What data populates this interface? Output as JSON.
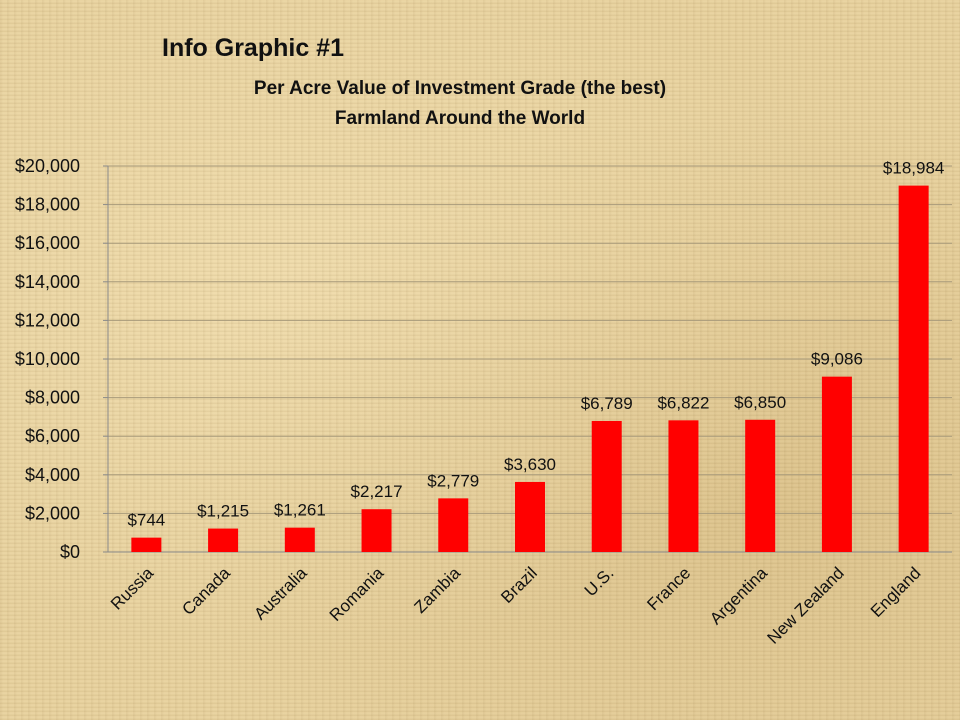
{
  "header": {
    "title": "Info Graphic #1",
    "subtitle_line1": "Per Acre Value of Investment Grade (the best)",
    "subtitle_line2": "Farmland Around the World"
  },
  "chart_data": {
    "type": "bar",
    "title": "Per Acre Value of Investment Grade (the best) Farmland Around the World",
    "xlabel": "",
    "ylabel": "",
    "categories": [
      "Russia",
      "Canada",
      "Australia",
      "Romania",
      "Zambia",
      "Brazil",
      "U.S.",
      "France",
      "Argentina",
      "New Zealand",
      "England"
    ],
    "values": [
      744,
      1215,
      1261,
      2217,
      2779,
      3630,
      6789,
      6822,
      6850,
      9086,
      18984
    ],
    "value_labels": [
      "$744",
      "$1,215",
      "$1,261",
      "$2,217",
      "$2,779",
      "$3,630",
      "$6,789",
      "$6,822",
      "$6,850",
      "$9,086",
      "$18,984"
    ],
    "ylim": [
      0,
      20000
    ],
    "yticks": [
      0,
      2000,
      4000,
      6000,
      8000,
      10000,
      12000,
      14000,
      16000,
      18000,
      20000
    ],
    "ytick_labels": [
      "$0",
      "$2,000",
      "$4,000",
      "$6,000",
      "$8,000",
      "$10,000",
      "$12,000",
      "$14,000",
      "$16,000",
      "$18,000",
      "$20,000"
    ],
    "grid": true,
    "legend": "none",
    "colors": {
      "bar": "#ff0000",
      "grid": "#a89a7a",
      "axis": "#8a8a8a"
    }
  }
}
